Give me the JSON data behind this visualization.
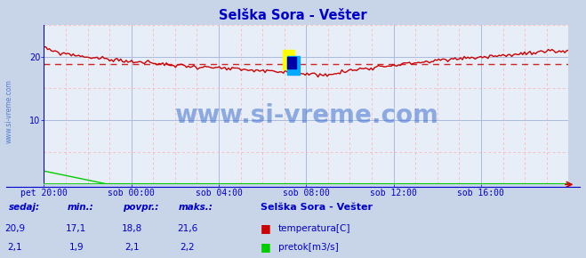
{
  "title": "Selška Sora - Vešter",
  "title_color": "#0000cc",
  "bg_color": "#c8d4e8",
  "plot_bg_color": "#e8eef8",
  "grid_color_major": "#aabbdd",
  "grid_color_minor": "#ffaaaa",
  "x_labels": [
    "pet 20:00",
    "sob 00:00",
    "sob 04:00",
    "sob 08:00",
    "sob 12:00",
    "sob 16:00"
  ],
  "x_ticks_count": 6,
  "y_min": 0,
  "y_max": 25,
  "y_ticks": [
    10,
    20
  ],
  "avg_temp": 18.8,
  "temp_color": "#cc0000",
  "pretok_color": "#00cc00",
  "avg_line_color": "#cc0000",
  "watermark": "www.si-vreme.com",
  "watermark_color": "#3366cc",
  "legend_title": "Selška Sora - Vešter",
  "label_color": "#0000cc",
  "table_headers": [
    "sedaj:",
    "min.:",
    "povpr.:",
    "maks.:"
  ],
  "table_temp": [
    "20,9",
    "17,1",
    "18,8",
    "21,6"
  ],
  "table_pretok": [
    "2,1",
    "1,9",
    "2,1",
    "2,2"
  ],
  "legend_items": [
    "temperatura[C]",
    "pretok[m3/s]"
  ],
  "legend_colors": [
    "#cc0000",
    "#00cc00"
  ],
  "n_points": 288,
  "border_color": "#0000cc",
  "axis_bottom_color": "#00cc00",
  "axis_right_color": "#cc0000"
}
